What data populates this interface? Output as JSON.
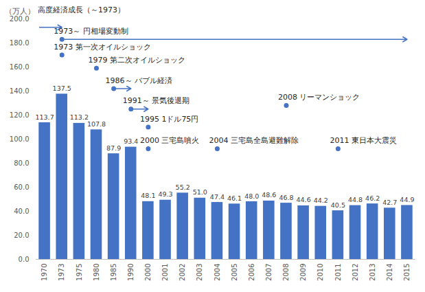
{
  "chart_data": {
    "type": "bar",
    "y_label": "（万人）",
    "categories": [
      "1970",
      "1973",
      "1975",
      "1980",
      "1985",
      "1990",
      "2000",
      "2001",
      "2002",
      "2003",
      "2004",
      "2005",
      "2006",
      "2007",
      "2008",
      "2009",
      "2010",
      "2011",
      "2012",
      "2013",
      "2014",
      "2015"
    ],
    "values": [
      113.7,
      137.5,
      113.2,
      107.8,
      87.9,
      93.4,
      48.1,
      49.3,
      55.2,
      51.0,
      47.4,
      46.1,
      48.0,
      48.6,
      46.8,
      44.6,
      44.2,
      40.5,
      44.8,
      46.2,
      42.7,
      44.9
    ],
    "value_labels": [
      "113.7",
      "137.5",
      "113.2",
      "107.8",
      "87.9",
      "93.4",
      "48.1",
      "49.3",
      "55.2",
      "51.0",
      "47.4",
      "46.1",
      "48.0",
      "48.6",
      "46.8",
      "44.6",
      "44.2",
      "40.5",
      "44.8",
      "46.2",
      "42.7",
      "44.9"
    ],
    "color": "#4472c4",
    "ylim": [
      0,
      200
    ],
    "yticks": [
      {
        "value": 0,
        "label": "0.0"
      },
      {
        "value": 20,
        "label": "20.0"
      },
      {
        "value": 40,
        "label": "40.0"
      },
      {
        "value": 60,
        "label": "60.0"
      },
      {
        "value": 80,
        "label": "80.0"
      },
      {
        "value": 100,
        "label": "100.0"
      },
      {
        "value": 120,
        "label": "120.0"
      },
      {
        "value": 140,
        "label": "140.0"
      },
      {
        "value": 160,
        "label": "160.0"
      },
      {
        "value": 180,
        "label": "180.0"
      },
      {
        "value": 200,
        "label": "200.0"
      }
    ],
    "grid": false,
    "data_labels": true,
    "annotations": [
      {
        "text": "高度経済成長（～1973）",
        "x": "1970",
        "y": 193,
        "arrow_to": "1973",
        "marker": "none"
      },
      {
        "text": "1973～ 円相場変動制",
        "x": "1973",
        "y": 183,
        "arrow_to": "2015",
        "marker": "circle"
      },
      {
        "text": "1973 第一次オイルショック",
        "x": "1973",
        "y": 170,
        "marker": "circle"
      },
      {
        "text": "1979 第二次オイルショック",
        "x": "1980",
        "y": 159,
        "marker": "circle"
      },
      {
        "text": "1986～ バブル経済",
        "x": "1985",
        "y": 142,
        "arrow_to": "1990",
        "marker": "circle"
      },
      {
        "text": "1991～ 景気後退期",
        "x": "1990",
        "y": 125,
        "arrow_to": "2000",
        "marker": "circle"
      },
      {
        "text": "1995 1ドル75円",
        "x": "2000",
        "y": 110,
        "marker": "circle"
      },
      {
        "text": "2000 三宅島噴火",
        "x": "2000",
        "y": 92,
        "marker": "circle"
      },
      {
        "text": "2004 三宅島全島避難解除",
        "x": "2004",
        "y": 92,
        "marker": "circle"
      },
      {
        "text": "2008 リーマンショック",
        "x": "2008",
        "y": 128,
        "marker": "circle"
      },
      {
        "text": "2011 東日本大震災",
        "x": "2011",
        "y": 92,
        "marker": "circle"
      }
    ]
  }
}
